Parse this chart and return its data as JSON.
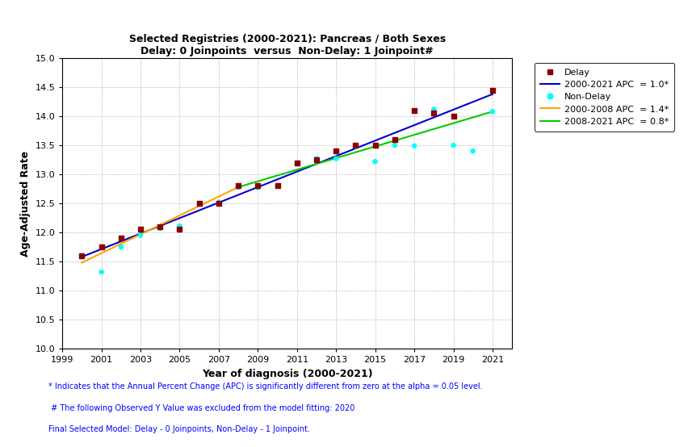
{
  "title_line1": "Selected Registries (2000-2021): Pancreas / Both Sexes",
  "title_line2": "Delay: 0 Joinpoints  versus  Non-Delay: 1 Joinpoint#",
  "xlabel": "Year of diagnosis (2000-2021)",
  "ylabel": "Age-Adjusted Rate",
  "xlim": [
    1999,
    2022
  ],
  "ylim": [
    10,
    15
  ],
  "yticks": [
    10,
    10.5,
    11,
    11.5,
    12,
    12.5,
    13,
    13.5,
    14,
    14.5,
    15
  ],
  "xticks": [
    1999,
    2001,
    2003,
    2005,
    2007,
    2009,
    2011,
    2013,
    2015,
    2017,
    2019,
    2021
  ],
  "delay_x": [
    2000,
    2001,
    2002,
    2003,
    2004,
    2005,
    2006,
    2007,
    2008,
    2009,
    2010,
    2011,
    2012,
    2013,
    2014,
    2015,
    2016,
    2017,
    2018,
    2019,
    2021
  ],
  "delay_y": [
    11.6,
    11.75,
    11.9,
    12.05,
    12.1,
    12.05,
    12.5,
    12.5,
    12.8,
    12.8,
    12.8,
    13.2,
    13.25,
    13.4,
    13.5,
    13.5,
    13.6,
    14.1,
    14.05,
    14.0,
    14.45
  ],
  "nondelay_x": [
    2000,
    2001,
    2002,
    2003,
    2004,
    2005,
    2006,
    2007,
    2008,
    2009,
    2010,
    2011,
    2012,
    2013,
    2014,
    2015,
    2016,
    2017,
    2018,
    2019,
    2020,
    2021
  ],
  "nondelay_y": [
    11.58,
    11.32,
    11.75,
    11.95,
    12.07,
    12.11,
    12.5,
    12.52,
    12.78,
    12.77,
    12.8,
    13.18,
    13.27,
    13.27,
    13.48,
    13.22,
    13.5,
    13.49,
    14.12,
    13.5,
    13.4,
    14.08
  ],
  "delay_line_x": [
    2000,
    2021
  ],
  "delay_line_y": [
    11.58,
    14.38
  ],
  "nondelay_line1_x": [
    2000,
    2008
  ],
  "nondelay_line1_y": [
    11.48,
    12.78
  ],
  "nondelay_line2_x": [
    2008,
    2021
  ],
  "nondelay_line2_y": [
    12.78,
    14.08
  ],
  "delay_color": "#8B0000",
  "delay_marker": "s",
  "nondelay_color": "#00FFFF",
  "nondelay_marker": "o",
  "line_delay_color": "#0000CD",
  "line_nd1_color": "#FFA500",
  "line_nd2_color": "#00CC00",
  "legend_delay_label": "Delay",
  "legend_line_delay_label": "2000-2021 APC  = 1.0*",
  "legend_nd_label": "Non-Delay",
  "legend_line_nd1_label": "2000-2008 APC  = 1.4*",
  "legend_line_nd2_label": "2008-2021 APC  = 0.8*",
  "footnote1": "* Indicates that the Annual Percent Change (APC) is significantly different from zero at the alpha = 0.05 level.",
  "footnote2": " # The following Observed Y Value was excluded from the model fitting: 2020",
  "footnote3": "Final Selected Model: Delay - 0 Joinpoints, Non-Delay - 1 Joinpoint.",
  "background_color": "#FFFFFF",
  "plot_bg_color": "#FFFFFF",
  "grid_color": "#888888"
}
